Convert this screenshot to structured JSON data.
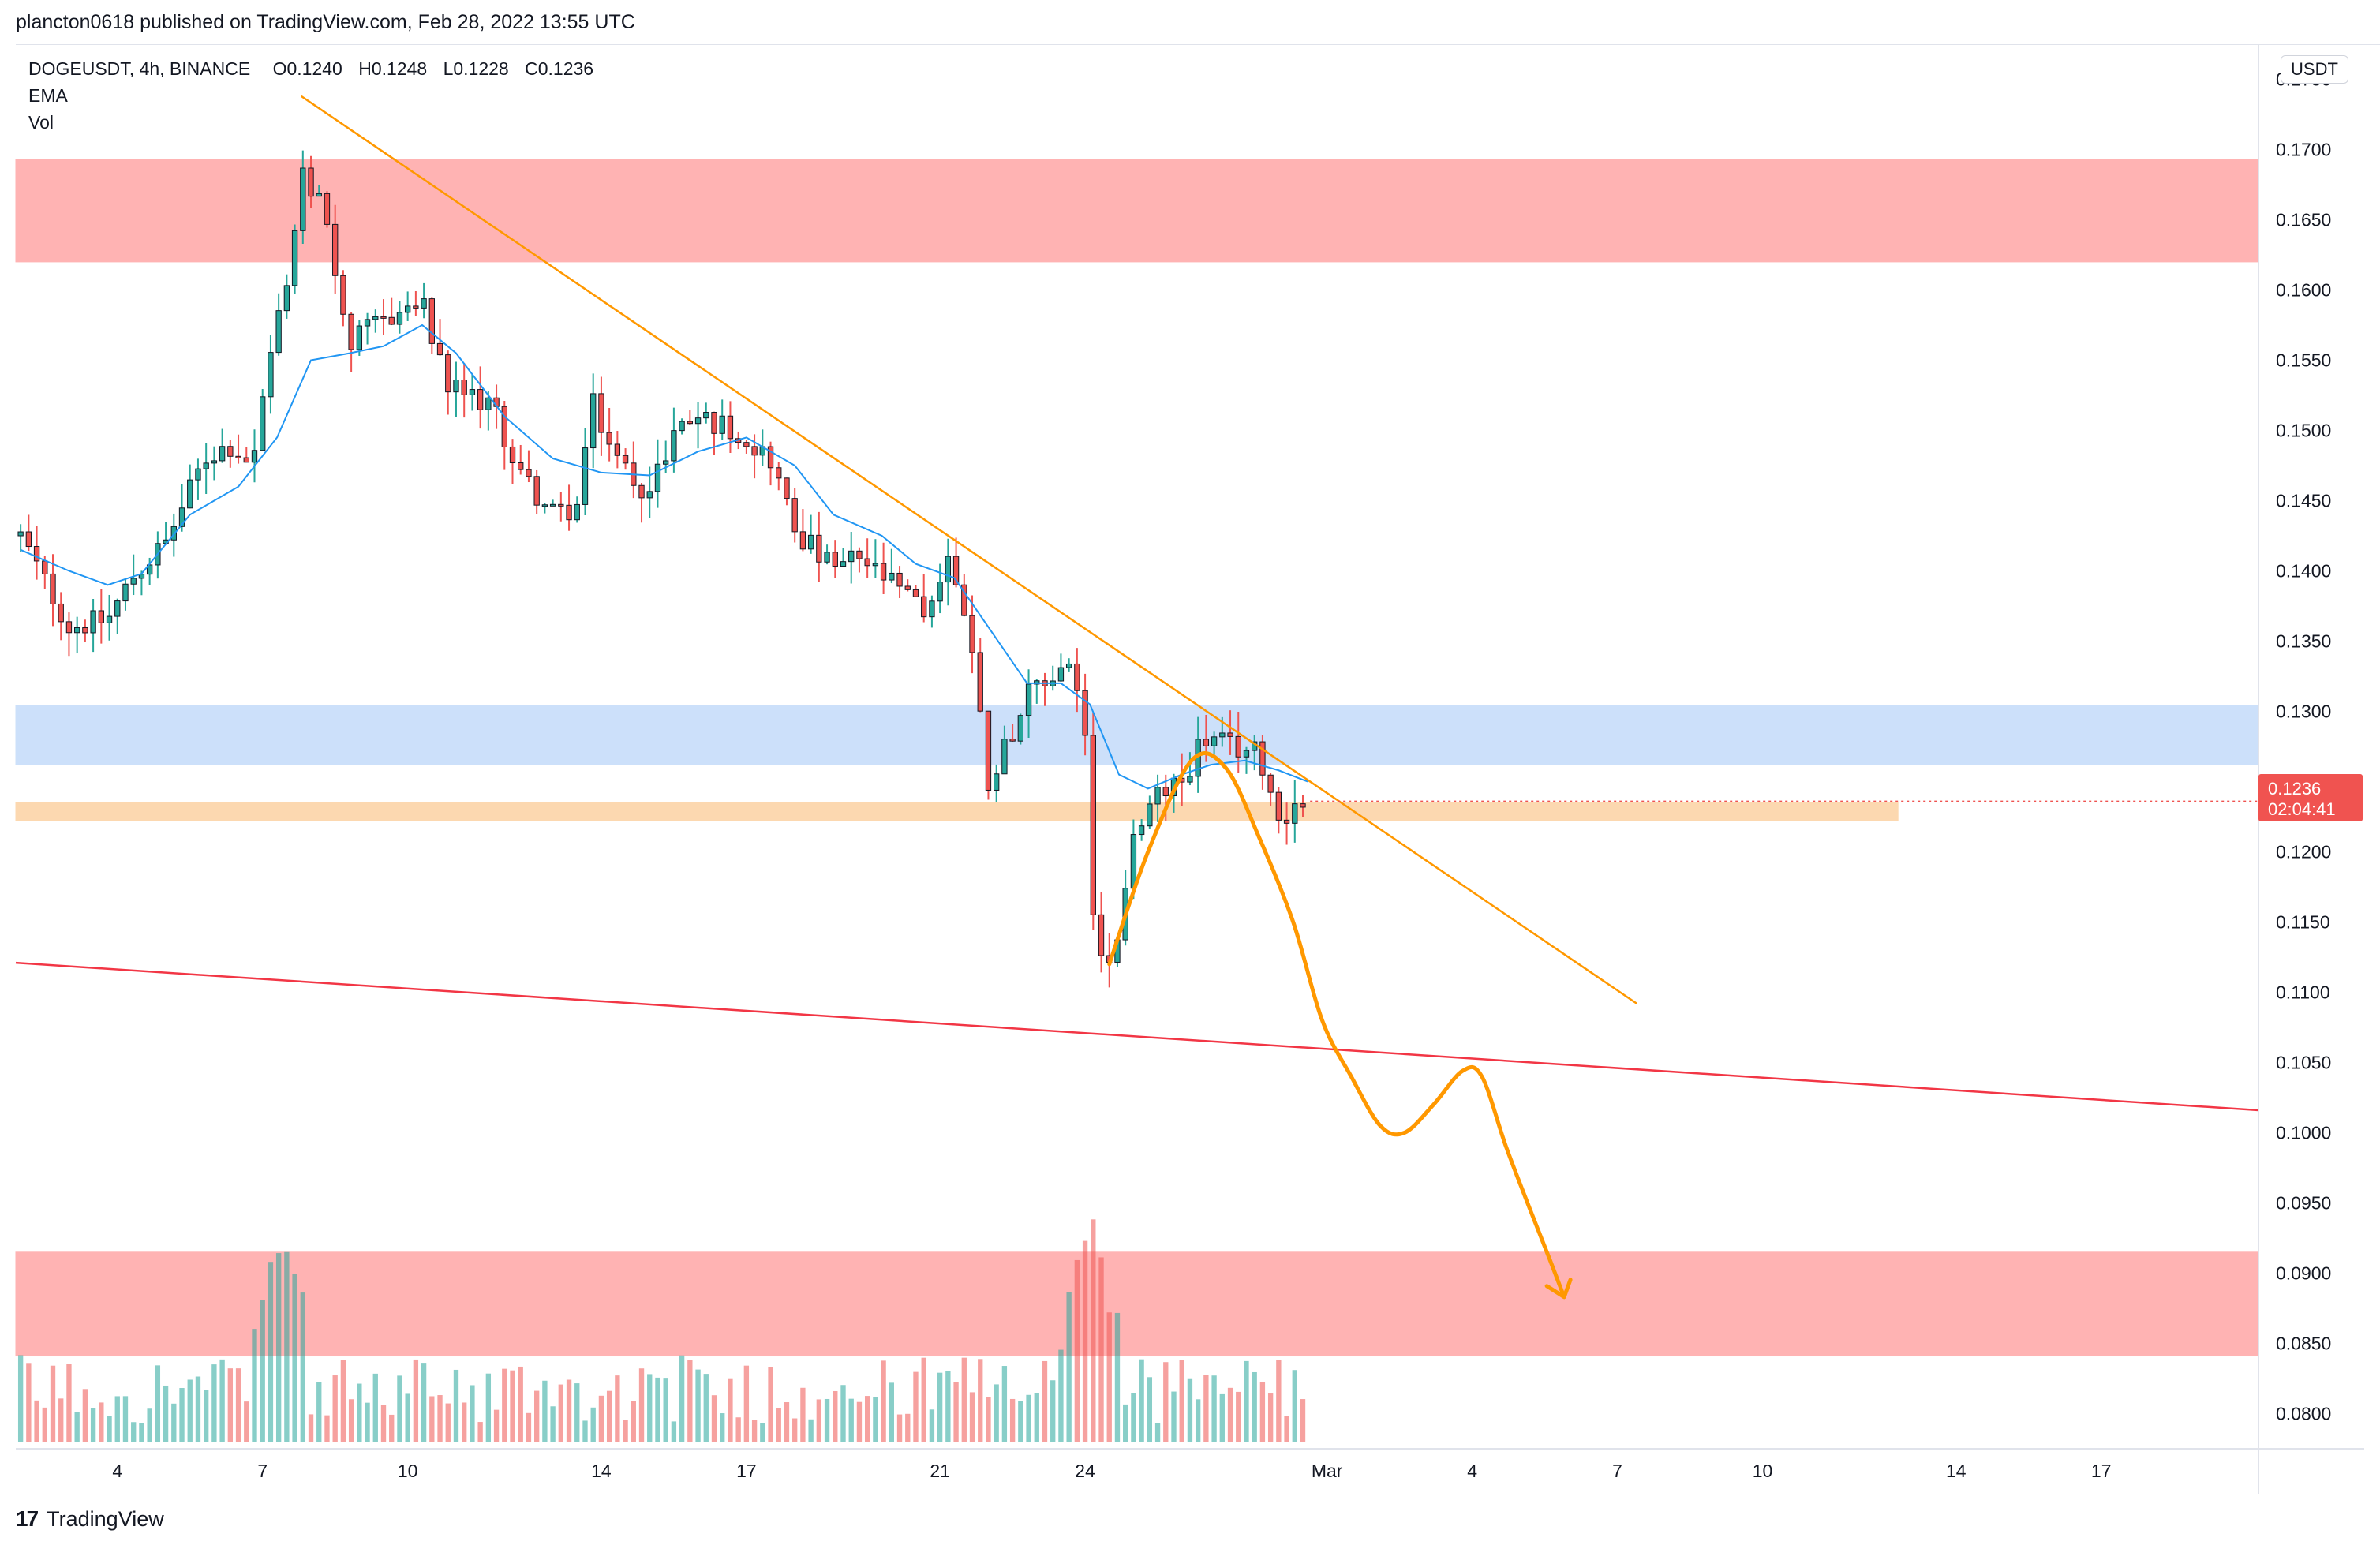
{
  "header": {
    "published_line": "plancton0618 published on TradingView.com, Feb 28, 2022 13:55 UTC"
  },
  "legend": {
    "symbol": "DOGEUSDT, 4h, BINANCE",
    "open": "O0.1240",
    "high": "H0.1248",
    "low": "L0.1228",
    "close": "C0.1236",
    "indicator_1": "EMA",
    "indicator_2": "Vol"
  },
  "price_axis": {
    "currency": "USDT",
    "last_price": "0.1236",
    "countdown": "02:04:41"
  },
  "footer": {
    "brand": "TradingView",
    "logo_glyph": "17"
  },
  "colors": {
    "up": "#26a69a",
    "down": "#ef5350",
    "ema": "#2196f3",
    "trendline": "#ff9800",
    "support_line": "#f23645"
  },
  "chart_data": {
    "type": "candlestick",
    "symbol": "DOGEUSDT",
    "timeframe": "4h",
    "exchange": "BINANCE",
    "y_axis": {
      "range": [
        0.0775,
        0.1775
      ],
      "ticks": [
        "0.1750",
        "0.1700",
        "0.1650",
        "0.1600",
        "0.1550",
        "0.1500",
        "0.1450",
        "0.1400",
        "0.1350",
        "0.1300",
        "0.1250",
        "0.1200",
        "0.1150",
        "0.1100",
        "0.1050",
        "0.1000",
        "0.0950",
        "0.0900",
        "0.0850",
        "0.0800"
      ]
    },
    "x_axis": {
      "tick_labels": [
        "4",
        "7",
        "10",
        "14",
        "17",
        "21",
        "24",
        "Mar",
        "4",
        "7",
        "10",
        "14",
        "17"
      ],
      "tick_days": [
        4,
        7,
        10,
        14,
        17,
        21,
        24,
        29,
        32,
        35,
        38,
        42,
        45
      ],
      "day_range": [
        1.9,
        48.25
      ]
    },
    "price_path": [
      [
        2.0,
        0.1425
      ],
      [
        3.0,
        0.136
      ],
      [
        3.8,
        0.1365
      ],
      [
        4.3,
        0.1395
      ],
      [
        5.0,
        0.142
      ],
      [
        5.8,
        0.148
      ],
      [
        6.3,
        0.149
      ],
      [
        6.8,
        0.1475
      ],
      [
        7.2,
        0.156
      ],
      [
        7.5,
        0.16
      ],
      [
        7.8,
        0.168
      ],
      [
        8.3,
        0.1655
      ],
      [
        8.8,
        0.156
      ],
      [
        9.5,
        0.158
      ],
      [
        10.3,
        0.159
      ],
      [
        10.8,
        0.153
      ],
      [
        11.7,
        0.152
      ],
      [
        12.3,
        0.147
      ],
      [
        13.0,
        0.144
      ],
      [
        13.5,
        0.1445
      ],
      [
        13.8,
        0.152
      ],
      [
        14.3,
        0.148
      ],
      [
        15.0,
        0.1455
      ],
      [
        15.5,
        0.15
      ],
      [
        16.0,
        0.151
      ],
      [
        16.8,
        0.15
      ],
      [
        17.5,
        0.148
      ],
      [
        18.0,
        0.143
      ],
      [
        18.8,
        0.14
      ],
      [
        19.3,
        0.141
      ],
      [
        20.0,
        0.139
      ],
      [
        20.7,
        0.137
      ],
      [
        21.2,
        0.141
      ],
      [
        21.6,
        0.136
      ],
      [
        22.0,
        0.125
      ],
      [
        22.4,
        0.128
      ],
      [
        22.8,
        0.131
      ],
      [
        23.2,
        0.132
      ],
      [
        23.6,
        0.1335
      ],
      [
        24.0,
        0.129
      ],
      [
        24.2,
        0.113
      ],
      [
        24.6,
        0.113
      ],
      [
        25.0,
        0.121
      ],
      [
        25.5,
        0.124
      ],
      [
        26.0,
        0.125
      ],
      [
        26.4,
        0.128
      ],
      [
        27.0,
        0.1275
      ],
      [
        27.6,
        0.127
      ],
      [
        28.0,
        0.1225
      ],
      [
        28.5,
        0.1235
      ],
      [
        28.65,
        0.1236
      ]
    ],
    "ema_path": [
      [
        2.0,
        0.1415
      ],
      [
        3.0,
        0.14
      ],
      [
        3.8,
        0.139
      ],
      [
        4.5,
        0.1398
      ],
      [
        5.5,
        0.144
      ],
      [
        6.5,
        0.146
      ],
      [
        7.3,
        0.1495
      ],
      [
        8.0,
        0.155
      ],
      [
        8.8,
        0.1555
      ],
      [
        9.5,
        0.156
      ],
      [
        10.3,
        0.1575
      ],
      [
        11.0,
        0.1555
      ],
      [
        12.0,
        0.151
      ],
      [
        13.0,
        0.148
      ],
      [
        14.0,
        0.147
      ],
      [
        15.0,
        0.1468
      ],
      [
        16.0,
        0.1485
      ],
      [
        17.0,
        0.1495
      ],
      [
        18.0,
        0.1475
      ],
      [
        18.8,
        0.144
      ],
      [
        19.8,
        0.1425
      ],
      [
        20.5,
        0.1405
      ],
      [
        21.3,
        0.1395
      ],
      [
        22.0,
        0.136
      ],
      [
        22.8,
        0.132
      ],
      [
        23.5,
        0.132
      ],
      [
        24.1,
        0.1305
      ],
      [
        24.7,
        0.1255
      ],
      [
        25.3,
        0.1245
      ],
      [
        26.0,
        0.1255
      ],
      [
        26.6,
        0.1262
      ],
      [
        27.3,
        0.1265
      ],
      [
        28.0,
        0.1258
      ],
      [
        28.6,
        0.125
      ]
    ],
    "volume_spike_days": [
      7.4,
      24.1
    ],
    "volume_relative": {
      "max": 1.0,
      "typical": 0.18
    },
    "zones": [
      {
        "name": "resistance-zone-top",
        "from": 0.162,
        "to": 0.1693,
        "color": "#ffb3b3",
        "day_end": 48.25
      },
      {
        "name": "resistance-zone-blue",
        "from": 0.1262,
        "to": 0.1304,
        "color": "#cce0fa",
        "day_end": 48.25
      },
      {
        "name": "support-zone-orange",
        "from": 0.1222,
        "to": 0.1235,
        "color": "#fcd8b0",
        "day_end": 40.8
      },
      {
        "name": "target-zone-bottom",
        "from": 0.0841,
        "to": 0.0915,
        "color": "#ffb3b3",
        "day_end": 48.25
      }
    ],
    "trendlines": [
      {
        "name": "descending-trendline",
        "from": [
          7.8,
          0.1738
        ],
        "to": [
          35.4,
          0.1092
        ],
        "color": "#ff9800"
      },
      {
        "name": "support-trendline",
        "from": [
          1.9,
          0.1121
        ],
        "to": [
          48.25,
          0.1016
        ],
        "color": "#f23645"
      }
    ],
    "projection_path": [
      [
        24.5,
        0.112
      ],
      [
        25.3,
        0.12
      ],
      [
        26.2,
        0.1265
      ],
      [
        26.9,
        0.126
      ],
      [
        27.6,
        0.121
      ],
      [
        28.3,
        0.115
      ],
      [
        28.9,
        0.108
      ],
      [
        29.5,
        0.104
      ],
      [
        30.1,
        0.1005
      ],
      [
        30.6,
        0.1
      ],
      [
        31.2,
        0.102
      ],
      [
        31.8,
        0.1044
      ],
      [
        32.2,
        0.104
      ],
      [
        32.7,
        0.099
      ],
      [
        33.2,
        0.0945
      ],
      [
        33.6,
        0.091
      ],
      [
        33.9,
        0.0883
      ]
    ],
    "projection_arrow_tip": [
      33.9,
      0.0883
    ],
    "last_price": 0.1236
  }
}
